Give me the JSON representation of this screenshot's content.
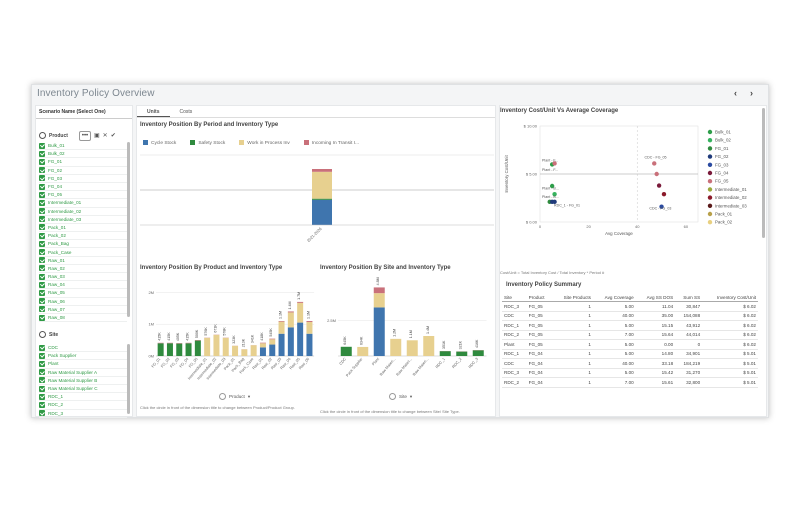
{
  "window": {
    "title": "Inventory Policy Overview",
    "prev": "‹",
    "next": "›"
  },
  "filters": {
    "scenario_label": "Scenario Name (Select One)",
    "product": {
      "label": "Product",
      "more": "•••",
      "items": [
        "Bulk_01",
        "Bulk_02",
        "FG_01",
        "FG_02",
        "FG_03",
        "FG_04",
        "FG_05",
        "Intermediate_01",
        "Intermediate_02",
        "Intermediate_03",
        "Pack_01",
        "Pack_02",
        "Pack_Bag",
        "Pack_Case",
        "Raw_01",
        "Raw_02",
        "Raw_03",
        "Raw_04",
        "Raw_05",
        "Raw_06",
        "Raw_07",
        "Raw_08"
      ]
    },
    "site": {
      "label": "Site",
      "items": [
        "CDC",
        "Pack Supplier",
        "Plant",
        "Raw Material Supplier A",
        "Raw Material Supplier B",
        "Raw Material Supplier C",
        "RDC_1",
        "RDC_2",
        "RDC_3"
      ]
    }
  },
  "tabs": [
    "Units",
    "Costs"
  ],
  "legend": [
    {
      "label": "Cycle Stock",
      "color": "#3f75ae"
    },
    {
      "label": "Safety Stock",
      "color": "#2f8a3e"
    },
    {
      "label": "Work in Process Inv",
      "color": "#e7d08f"
    },
    {
      "label": "Incoming In Transit I...",
      "color": "#c9707a"
    }
  ],
  "chart_data": [
    {
      "type": "bar",
      "title": "Inventory Position By Period and Inventory Type",
      "categories": [
        "2021-2026"
      ],
      "series": [
        {
          "name": "Cycle Stock",
          "values": [
            0.45
          ]
        },
        {
          "name": "Safety Stock",
          "values": [
            0.02
          ]
        },
        {
          "name": "Work in Process Inv",
          "values": [
            0.48
          ]
        },
        {
          "name": "Incoming In Transit I...",
          "values": [
            0.05
          ]
        }
      ]
    },
    {
      "type": "bar",
      "title": "Inventory Position By Product and Inventory Type",
      "xlabel": "Product",
      "yticks": [
        "0M",
        "1M",
        "2M"
      ],
      "categories": [
        "FG_01",
        "FG_02",
        "FG_03",
        "FG_04",
        "FG_05",
        "Intermediate_01",
        "Intermediate_02",
        "Intermediate_03",
        "Pack_01",
        "Pack_Bag",
        "Pack_Case",
        "Raw_01",
        "Raw_02",
        "Raw_03",
        "Raw_04",
        "Raw_05",
        "Raw_06"
      ],
      "value_labels": [
        "415K",
        "415K",
        "405K",
        "415K",
        "500K",
        "576K",
        "671K",
        "578K",
        "323K",
        "213K",
        "341K",
        "418K",
        "545K",
        "1.1M",
        "1.4M",
        "1.7M",
        "1.1M"
      ],
      "stacks": [
        [
          0,
          400,
          0,
          15
        ],
        [
          0,
          400,
          0,
          15
        ],
        [
          0,
          390,
          0,
          15
        ],
        [
          0,
          400,
          0,
          15
        ],
        [
          0,
          485,
          0,
          15
        ],
        [
          0,
          0,
          570,
          6
        ],
        [
          0,
          0,
          665,
          6
        ],
        [
          0,
          0,
          572,
          6
        ],
        [
          0,
          0,
          320,
          3
        ],
        [
          0,
          0,
          210,
          3
        ],
        [
          0,
          0,
          338,
          3
        ],
        [
          270,
          0,
          130,
          18
        ],
        [
          360,
          0,
          165,
          20
        ],
        [
          700,
          0,
          380,
          20
        ],
        [
          900,
          0,
          470,
          30
        ],
        [
          1050,
          0,
          620,
          30
        ],
        [
          700,
          0,
          370,
          30
        ]
      ],
      "caption": "Click the circle in front of the dimension title to change between Product/Product Group."
    },
    {
      "type": "bar",
      "title": "Inventory Position By Site and Inventory Type",
      "xlabel": "Site",
      "yticks": [
        "2.5M"
      ],
      "categories": [
        "CDC",
        "Pack Supplier",
        "Plant",
        "Raw Materi...",
        "Raw Materi...",
        "Raw Materi...",
        "RDC_1",
        "RDC_2",
        "RDC_3"
      ],
      "value_labels": [
        "645K",
        "634K",
        "4.8M",
        "1.2M",
        "1.1M",
        "1.4M",
        "351K",
        "321K",
        "416K"
      ],
      "stacks": [
        [
          0,
          645,
          0,
          0
        ],
        [
          0,
          0,
          634,
          0
        ],
        [
          3400,
          0,
          1000,
          400
        ],
        [
          0,
          0,
          1200,
          0
        ],
        [
          0,
          0,
          1100,
          0
        ],
        [
          0,
          0,
          1400,
          0
        ],
        [
          0,
          340,
          0,
          11
        ],
        [
          0,
          310,
          0,
          11
        ],
        [
          0,
          400,
          0,
          16
        ]
      ],
      "caption": "Click the circle in front of the dimension title to change between Site/ Site Type."
    },
    {
      "type": "scatter",
      "title": "Inventory Cost/Unit Vs Average Coverage",
      "xlabel": "Avg Coverage",
      "ylabel": "Inventory Cost/Unit",
      "xticks": [
        "0",
        "20",
        "40",
        "60"
      ],
      "yticks": [
        "$ 10.00",
        "$ 5.00",
        "$ 0.00"
      ],
      "xlim": [
        0,
        65
      ],
      "ylim": [
        0,
        10
      ],
      "caption": "Cost/Unit = Total Inventory Cost / Total Inventory * Period #",
      "series": [
        {
          "name": "Bulk_01",
          "color": "#2e9e4a",
          "points": [
            [
              5,
              3.75
            ],
            [
              5,
              6.0
            ]
          ]
        },
        {
          "name": "Bulk_02",
          "color": "#35b35e",
          "points": [
            [
              6,
              2.9
            ]
          ]
        },
        {
          "name": "FG_01",
          "color": "#2f8a3e",
          "points": [
            [
              4,
              2.1
            ]
          ]
        },
        {
          "name": "FG_02",
          "color": "#1f3a7a",
          "points": [
            [
              5,
              2.1
            ],
            [
              6,
              2.1
            ]
          ]
        },
        {
          "name": "FG_03",
          "color": "#2a4aa0",
          "points": [
            [
              50,
              1.6
            ]
          ]
        },
        {
          "name": "FG_04",
          "color": "#7a1a3a",
          "points": [
            [
              49,
              3.8
            ]
          ]
        },
        {
          "name": "FG_05",
          "color": "#c9707a",
          "points": [
            [
              47,
              6.1
            ],
            [
              48,
              5.0
            ],
            [
              6,
              6.1
            ]
          ]
        },
        {
          "name": "Intermediate_01",
          "color": "#9aa83c",
          "points": []
        },
        {
          "name": "Intermediate_02",
          "color": "#8b1a2a",
          "points": [
            [
              51,
              2.9
            ]
          ]
        },
        {
          "name": "Intermediate_03",
          "color": "#5a1a1a",
          "points": []
        },
        {
          "name": "Pack_01",
          "color": "#b8a04a",
          "points": []
        },
        {
          "name": "Pack_02",
          "color": "#e8d080",
          "points": []
        }
      ],
      "annotations": [
        "Plant - F...",
        "Plant - F...",
        "Plant - B...",
        "Plant - B...",
        "RDC_1 - FG_01",
        "CDC - FG_05",
        "CDC - FG_03"
      ]
    }
  ],
  "summary": {
    "title": "Inventory Policy Summary",
    "columns": [
      "Site",
      "Product",
      "Site Products",
      "Avg Coverage",
      "Avg SS DOS",
      "Sum SS",
      "Inventory Cost/Unit"
    ],
    "rows": [
      [
        "RDC_3",
        "FG_05",
        "1",
        "5.00",
        "11.04",
        "30,847",
        "$ 6.02"
      ],
      [
        "CDC",
        "FG_05",
        "1",
        "40.00",
        "35.00",
        "154,088",
        "$ 6.02"
      ],
      [
        "RDC_1",
        "FG_05",
        "1",
        "5.00",
        "15.15",
        "43,912",
        "$ 6.02"
      ],
      [
        "RDC_2",
        "FG_05",
        "1",
        "7.00",
        "15.64",
        "44,014",
        "$ 6.02"
      ],
      [
        "Plant",
        "FG_05",
        "1",
        "5.00",
        "0.00",
        "0",
        "$ 6.02"
      ],
      [
        "RDC_1",
        "FG_04",
        "1",
        "5.00",
        "14.80",
        "34,901",
        "$ 5.01"
      ],
      [
        "CDC",
        "FG_04",
        "1",
        "40.00",
        "33.18",
        "184,219",
        "$ 5.01"
      ],
      [
        "RDC_3",
        "FG_04",
        "1",
        "5.00",
        "15.42",
        "31,270",
        "$ 5.01"
      ],
      [
        "RDC_2",
        "FG_04",
        "1",
        "7.00",
        "15.61",
        "32,800",
        "$ 5.01"
      ]
    ]
  }
}
